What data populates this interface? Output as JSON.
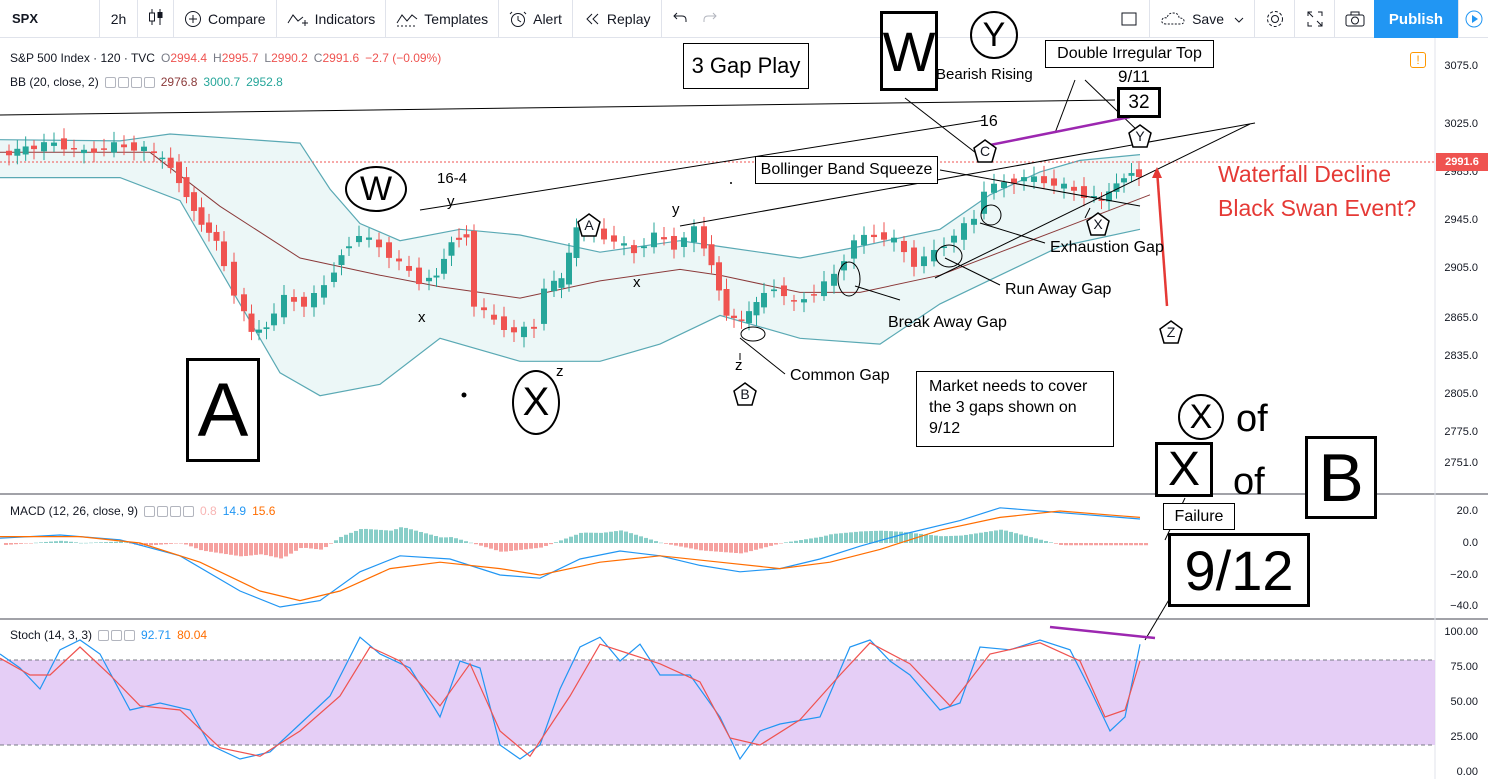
{
  "toolbar": {
    "symbol": "SPX",
    "interval": "2h",
    "compare": "Compare",
    "indicators": "Indicators",
    "templates": "Templates",
    "alert": "Alert",
    "replay": "Replay",
    "save": "Save",
    "publish": "Publish"
  },
  "legend": {
    "main": {
      "name": "S&P 500 Index · 120 · TVC",
      "o_label": "O",
      "o": "2994.4",
      "h_label": "H",
      "h": "2995.7",
      "l_label": "L",
      "l": "2990.2",
      "c_label": "C",
      "c": "2991.6",
      "chg": "−2.7 (−0.09%)"
    },
    "bb": {
      "name": "BB (20, close, 2)",
      "v1": "2976.8",
      "v2": "3000.7",
      "v3": "2952.8"
    },
    "macd": {
      "name": "MACD (12, 26, close, 9)",
      "v1": "0.8",
      "v2": "14.9",
      "v3": "15.6"
    },
    "stoch": {
      "name": "Stoch (14, 3, 3)",
      "v1": "92.71",
      "v2": "80.04"
    }
  },
  "price_axis": {
    "main": [
      "3075.0",
      "3025.0",
      "2985.0",
      "2945.0",
      "2905.0",
      "2865.0",
      "2835.0",
      "2805.0",
      "2775.0",
      "2751.0"
    ],
    "last_price": "2991.6",
    "macd": [
      "20.0",
      "0.0",
      "−20.0",
      "−40.0"
    ],
    "stoch": [
      "100.00",
      "75.00",
      "50.00",
      "25.00",
      "0.00"
    ]
  },
  "annotations": {
    "three_gap_play": "3 Gap Play",
    "big_w": "W",
    "circle_y": "Y",
    "bearish_rising": "Bearish Rising",
    "double_irregular_top": "Double Irregular Top",
    "date_911": "9/11",
    "count_32": "32",
    "sixteen": "16",
    "c_label": "C",
    "pent_y_top": "Y",
    "bollinger_squeeze": "Bollinger Band Squeeze",
    "waterfall": "Waterfall Decline",
    "black_swan": "Black Swan Event?",
    "circle_w": "W",
    "sixteen_four": "16-4",
    "small_y1": "y",
    "pent_a": "A",
    "small_y2": "y",
    "small_x1": "x",
    "small_x2": "x",
    "exhaustion_gap": "Exhaustion  Gap",
    "pent_x": "X",
    "run_away_gap": "Run Away Gap",
    "break_away_gap": "Break Away Gap",
    "pent_z": "Z",
    "common_gap": "Common Gap",
    "small_z1": "z",
    "small_z2": "z",
    "pent_b": "B",
    "big_a": "A",
    "circle_x_mid": "X",
    "market_needs": "Market needs to cover the 3 gaps shown on 9/12",
    "circle_x_right": "X",
    "of1": "of",
    "big_x": "X",
    "of2": "of",
    "big_b": "B",
    "failure": "Failure",
    "date_912": "9/12"
  },
  "colors": {
    "up": "#26a69a",
    "down": "#ef5350",
    "bb_band": "#5aa9b4",
    "bb_basis": "#8b3a3a",
    "macd_line": "#2196f3",
    "signal_line": "#ff6d00",
    "stoch_fill": "#e1c6f5",
    "purple": "#9c27b0",
    "red_text": "#e53935"
  },
  "icons": [
    "candles-icon",
    "plus-circle-icon",
    "indicators-icon",
    "templates-icon",
    "alert-icon",
    "replay-icon",
    "undo-icon",
    "redo-icon",
    "rectangle-icon",
    "cloud-icon",
    "gear-icon",
    "fullscreen-icon",
    "camera-icon",
    "play-icon"
  ]
}
